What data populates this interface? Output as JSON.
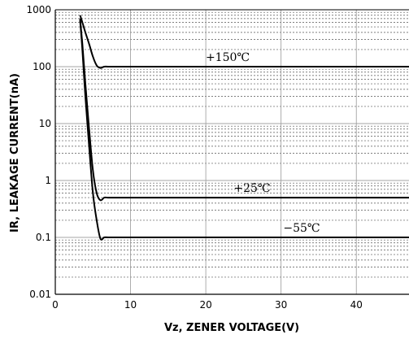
{
  "chart_data": {
    "type": "line",
    "xlabel": "Vz, ZENER VOLTAGE(V)",
    "ylabel": "IR, LEAKAGE CURRENT(nA)",
    "xlim": [
      0,
      47
    ],
    "ylim": [
      0.01,
      1000
    ],
    "y_scale": "log",
    "grid": true,
    "x_ticks": [
      {
        "value": 0,
        "label": "0"
      },
      {
        "value": 10,
        "label": "10"
      },
      {
        "value": 20,
        "label": "20"
      },
      {
        "value": 30,
        "label": "30"
      },
      {
        "value": 40,
        "label": "40"
      }
    ],
    "y_ticks": [
      {
        "value": 0.01,
        "label": "0.01"
      },
      {
        "value": 0.1,
        "label": "0.1"
      },
      {
        "value": 1,
        "label": "1"
      },
      {
        "value": 10,
        "label": "10"
      },
      {
        "value": 100,
        "label": "100"
      },
      {
        "value": 1000,
        "label": "1000"
      }
    ],
    "series": [
      {
        "name": "+150℃",
        "x": [
          3.3,
          3.6,
          4.0,
          4.5,
          5.0,
          5.5,
          6.0,
          6.5,
          7.0,
          8.0,
          10.0,
          20.0,
          30.0,
          40.0,
          47.0
        ],
        "y": [
          800,
          600,
          400,
          250,
          150,
          105,
          95,
          100,
          100,
          100,
          100,
          100,
          100,
          100,
          100
        ]
      },
      {
        "name": "+25℃",
        "x": [
          3.3,
          3.6,
          4.0,
          4.5,
          5.0,
          5.5,
          6.0,
          6.5,
          7.0,
          8.0,
          10.0,
          20.0,
          30.0,
          40.0,
          47.0
        ],
        "y": [
          700,
          250,
          50,
          8,
          1.5,
          0.6,
          0.45,
          0.5,
          0.5,
          0.5,
          0.5,
          0.5,
          0.5,
          0.5,
          0.5
        ]
      },
      {
        "name": "-55℃",
        "x": [
          3.3,
          3.6,
          4.0,
          4.5,
          5.0,
          5.5,
          6.0,
          6.5,
          7.0,
          8.0,
          10.0,
          20.0,
          30.0,
          40.0,
          47.0
        ],
        "y": [
          650,
          200,
          30,
          4,
          0.6,
          0.2,
          0.095,
          0.1,
          0.1,
          0.1,
          0.1,
          0.1,
          0.1,
          0.1,
          0.1
        ]
      }
    ],
    "annotations": [
      {
        "text": "+150℃",
        "series": 0
      },
      {
        "text": "+25℃",
        "series": 1
      },
      {
        "text": "−55℃",
        "series": 2
      }
    ]
  }
}
